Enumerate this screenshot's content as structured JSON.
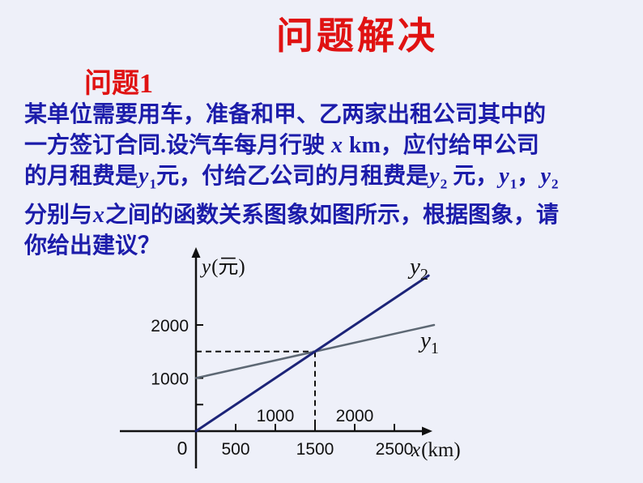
{
  "title": "问题解决",
  "subtitle": "问题1",
  "colors": {
    "background": "#eef0f9",
    "title_red": "#e01212",
    "body_blue": "#1c1caa",
    "axis": "#111111",
    "y1_line": "#5d6874",
    "y2_line": "#1c2478"
  },
  "problem": {
    "lines": [
      [
        {
          "t": "某单位需要用车，准备和甲、乙两家出租公司其中的"
        }
      ],
      [
        {
          "t": "一方签订合同.设汽车每月行驶 "
        },
        {
          "t": "x",
          "i": true
        },
        {
          "t": " "
        },
        {
          "t": "km"
        },
        {
          "t": "，应付给甲公司"
        }
      ],
      [
        {
          "t": "的月租费是"
        },
        {
          "t": "y",
          "i": true
        },
        {
          "t": "1",
          "sub": true
        },
        {
          "t": "元，付给乙公司的月租费是"
        },
        {
          "t": "y",
          "i": true
        },
        {
          "t": "2",
          "sub": true
        },
        {
          "t": " 元，"
        },
        {
          "t": "y",
          "i": true
        },
        {
          "t": "1",
          "sub": true
        },
        {
          "t": "，"
        },
        {
          "t": "y",
          "i": true
        },
        {
          "t": "2",
          "sub": true
        }
      ],
      [
        {
          "t": "分别与"
        },
        {
          "t": "x",
          "i": true
        },
        {
          "t": "之间的函数关系图象如图所示，根据图象，请"
        }
      ],
      [
        {
          "t": "你给出建议？"
        }
      ]
    ]
  },
  "chart_data": {
    "type": "line",
    "title": "",
    "x_axis_label": {
      "var": "x",
      "unit": "(km)"
    },
    "y_axis_label": {
      "var": "y",
      "unit": "(元)"
    },
    "origin_label": "0",
    "x_ticks_below": [
      500,
      1500,
      2500
    ],
    "x_ticks_above": [
      1000,
      2000
    ],
    "y_ticks": [
      500,
      1000,
      2000
    ],
    "y_tick_labels": [
      1000,
      2000
    ],
    "xlim": [
      0,
      2950
    ],
    "ylim": [
      0,
      2950
    ],
    "grid": false,
    "axis_color": "#111111",
    "series": [
      {
        "name": "y1",
        "label": {
          "var": "y",
          "sub": "1"
        },
        "color": "#5d6874",
        "width": 2.5,
        "points": [
          [
            0,
            1000
          ],
          [
            3000,
            2000
          ]
        ]
      },
      {
        "name": "y2",
        "label": {
          "var": "y",
          "sub": "2"
        },
        "color": "#1c2478",
        "width": 3,
        "points": [
          [
            0,
            0
          ],
          [
            2930,
            2930
          ]
        ]
      }
    ],
    "intersection": {
      "x": 1500,
      "y": 1500
    },
    "guides": "dashed-to-axes"
  }
}
